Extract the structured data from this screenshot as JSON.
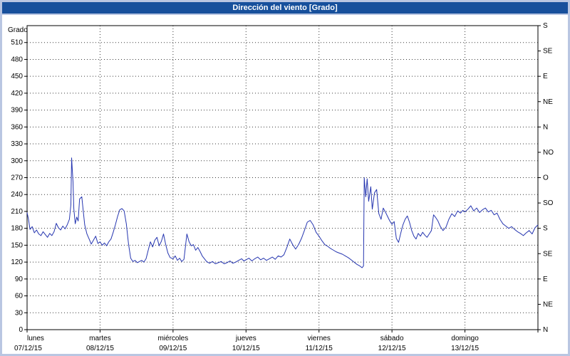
{
  "title": "Dirección del viento [Grado]",
  "colors": {
    "frame": "#b9c6e2",
    "titlebar": "#17509c",
    "title_text": "#ffffff",
    "panel": "#ffffff",
    "grid": "#3a3a3a",
    "axis": "#000000",
    "line": "#2636b0",
    "text": "#000000"
  },
  "chart_data": {
    "type": "line",
    "title": "Dirección del viento [Grado]",
    "ylabel_left": "Grado",
    "ylim": [
      0,
      540
    ],
    "y_left_ticks": [
      0,
      30,
      60,
      90,
      120,
      150,
      180,
      210,
      240,
      270,
      300,
      330,
      360,
      390,
      420,
      450,
      480,
      510
    ],
    "y_right_ticks": [
      {
        "value": 0,
        "label": "N"
      },
      {
        "value": 45,
        "label": "NE"
      },
      {
        "value": 90,
        "label": "E"
      },
      {
        "value": 135,
        "label": "SE"
      },
      {
        "value": 180,
        "label": "S"
      },
      {
        "value": 225,
        "label": "SO"
      },
      {
        "value": 270,
        "label": "O"
      },
      {
        "value": 315,
        "label": "NO"
      },
      {
        "value": 360,
        "label": "N"
      },
      {
        "value": 405,
        "label": "NE"
      },
      {
        "value": 450,
        "label": "E"
      },
      {
        "value": 495,
        "label": "SE"
      },
      {
        "value": 540,
        "label": "S"
      }
    ],
    "xlim_days": [
      0,
      7
    ],
    "x_days": [
      {
        "name": "lunes",
        "date": "07/12/15"
      },
      {
        "name": "martes",
        "date": "08/12/15"
      },
      {
        "name": "miércoles",
        "date": "09/12/15"
      },
      {
        "name": "jueves",
        "date": "10/12/15"
      },
      {
        "name": "viernes",
        "date": "11/12/15"
      },
      {
        "name": "sábado",
        "date": "12/12/15"
      },
      {
        "name": "domingo",
        "date": "13/12/15"
      }
    ],
    "grid": true,
    "legend": false,
    "series": [
      {
        "name": "Dirección del viento",
        "color": "#2636b0",
        "points": [
          [
            0.0,
            208
          ],
          [
            0.02,
            196
          ],
          [
            0.04,
            178
          ],
          [
            0.07,
            183
          ],
          [
            0.1,
            172
          ],
          [
            0.13,
            177
          ],
          [
            0.16,
            170
          ],
          [
            0.19,
            167
          ],
          [
            0.22,
            174
          ],
          [
            0.25,
            169
          ],
          [
            0.28,
            164
          ],
          [
            0.31,
            171
          ],
          [
            0.34,
            167
          ],
          [
            0.37,
            174
          ],
          [
            0.4,
            189
          ],
          [
            0.43,
            181
          ],
          [
            0.46,
            177
          ],
          [
            0.49,
            184
          ],
          [
            0.52,
            179
          ],
          [
            0.55,
            186
          ],
          [
            0.58,
            196
          ],
          [
            0.6,
            222
          ],
          [
            0.61,
            305
          ],
          [
            0.63,
            262
          ],
          [
            0.64,
            215
          ],
          [
            0.66,
            188
          ],
          [
            0.68,
            200
          ],
          [
            0.7,
            193
          ],
          [
            0.72,
            232
          ],
          [
            0.75,
            236
          ],
          [
            0.77,
            210
          ],
          [
            0.79,
            186
          ],
          [
            0.82,
            170
          ],
          [
            0.85,
            161
          ],
          [
            0.88,
            152
          ],
          [
            0.91,
            159
          ],
          [
            0.94,
            166
          ],
          [
            0.97,
            153
          ],
          [
            1.0,
            156
          ],
          [
            1.03,
            150
          ],
          [
            1.06,
            154
          ],
          [
            1.09,
            149
          ],
          [
            1.12,
            156
          ],
          [
            1.15,
            161
          ],
          [
            1.18,
            173
          ],
          [
            1.21,
            186
          ],
          [
            1.24,
            201
          ],
          [
            1.27,
            213
          ],
          [
            1.3,
            215
          ],
          [
            1.33,
            211
          ],
          [
            1.36,
            188
          ],
          [
            1.39,
            152
          ],
          [
            1.42,
            127
          ],
          [
            1.45,
            121
          ],
          [
            1.48,
            123
          ],
          [
            1.51,
            119
          ],
          [
            1.54,
            121
          ],
          [
            1.57,
            123
          ],
          [
            1.6,
            120
          ],
          [
            1.63,
            126
          ],
          [
            1.66,
            141
          ],
          [
            1.69,
            156
          ],
          [
            1.72,
            147
          ],
          [
            1.75,
            159
          ],
          [
            1.78,
            164
          ],
          [
            1.81,
            149
          ],
          [
            1.84,
            157
          ],
          [
            1.87,
            170
          ],
          [
            1.9,
            151
          ],
          [
            1.93,
            136
          ],
          [
            1.96,
            128
          ],
          [
            2.0,
            126
          ],
          [
            2.03,
            131
          ],
          [
            2.06,
            123
          ],
          [
            2.09,
            127
          ],
          [
            2.12,
            121
          ],
          [
            2.15,
            125
          ],
          [
            2.19,
            170
          ],
          [
            2.22,
            156
          ],
          [
            2.25,
            149
          ],
          [
            2.28,
            151
          ],
          [
            2.31,
            141
          ],
          [
            2.34,
            146
          ],
          [
            2.37,
            139
          ],
          [
            2.4,
            131
          ],
          [
            2.43,
            126
          ],
          [
            2.46,
            121
          ],
          [
            2.5,
            118
          ],
          [
            2.54,
            121
          ],
          [
            2.58,
            117
          ],
          [
            2.62,
            119
          ],
          [
            2.66,
            121
          ],
          [
            2.7,
            117
          ],
          [
            2.74,
            119
          ],
          [
            2.78,
            122
          ],
          [
            2.82,
            118
          ],
          [
            2.86,
            120
          ],
          [
            2.9,
            123
          ],
          [
            2.94,
            126
          ],
          [
            2.97,
            122
          ],
          [
            3.0,
            124
          ],
          [
            3.04,
            127
          ],
          [
            3.08,
            122
          ],
          [
            3.12,
            126
          ],
          [
            3.16,
            129
          ],
          [
            3.2,
            124
          ],
          [
            3.24,
            127
          ],
          [
            3.28,
            123
          ],
          [
            3.32,
            126
          ],
          [
            3.36,
            129
          ],
          [
            3.4,
            125
          ],
          [
            3.44,
            131
          ],
          [
            3.48,
            129
          ],
          [
            3.52,
            133
          ],
          [
            3.56,
            146
          ],
          [
            3.6,
            161
          ],
          [
            3.64,
            151
          ],
          [
            3.68,
            143
          ],
          [
            3.72,
            151
          ],
          [
            3.76,
            162
          ],
          [
            3.8,
            176
          ],
          [
            3.84,
            191
          ],
          [
            3.88,
            194
          ],
          [
            3.92,
            186
          ],
          [
            3.96,
            173
          ],
          [
            4.0,
            166
          ],
          [
            4.04,
            158
          ],
          [
            4.08,
            151
          ],
          [
            4.12,
            148
          ],
          [
            4.16,
            144
          ],
          [
            4.2,
            141
          ],
          [
            4.24,
            138
          ],
          [
            4.28,
            136
          ],
          [
            4.32,
            134
          ],
          [
            4.36,
            131
          ],
          [
            4.4,
            128
          ],
          [
            4.44,
            124
          ],
          [
            4.48,
            120
          ],
          [
            4.52,
            116
          ],
          [
            4.56,
            113
          ],
          [
            4.59,
            110
          ],
          [
            4.61,
            113
          ],
          [
            4.62,
            270
          ],
          [
            4.64,
            236
          ],
          [
            4.66,
            268
          ],
          [
            4.68,
            228
          ],
          [
            4.71,
            254
          ],
          [
            4.73,
            214
          ],
          [
            4.76,
            243
          ],
          [
            4.79,
            249
          ],
          [
            4.82,
            206
          ],
          [
            4.85,
            196
          ],
          [
            4.88,
            216
          ],
          [
            4.91,
            209
          ],
          [
            4.94,
            201
          ],
          [
            4.97,
            193
          ],
          [
            5.0,
            187
          ],
          [
            5.03,
            192
          ],
          [
            5.06,
            162
          ],
          [
            5.09,
            155
          ],
          [
            5.12,
            171
          ],
          [
            5.15,
            186
          ],
          [
            5.18,
            196
          ],
          [
            5.21,
            202
          ],
          [
            5.24,
            191
          ],
          [
            5.27,
            176
          ],
          [
            5.3,
            166
          ],
          [
            5.33,
            161
          ],
          [
            5.36,
            171
          ],
          [
            5.39,
            166
          ],
          [
            5.42,
            173
          ],
          [
            5.45,
            168
          ],
          [
            5.48,
            164
          ],
          [
            5.51,
            170
          ],
          [
            5.54,
            176
          ],
          [
            5.57,
            204
          ],
          [
            5.6,
            199
          ],
          [
            5.63,
            193
          ],
          [
            5.66,
            184
          ],
          [
            5.7,
            176
          ],
          [
            5.74,
            182
          ],
          [
            5.78,
            196
          ],
          [
            5.82,
            206
          ],
          [
            5.86,
            201
          ],
          [
            5.9,
            211
          ],
          [
            5.94,
            207
          ],
          [
            5.97,
            212
          ],
          [
            6.0,
            209
          ],
          [
            6.04,
            214
          ],
          [
            6.08,
            220
          ],
          [
            6.12,
            211
          ],
          [
            6.16,
            216
          ],
          [
            6.2,
            208
          ],
          [
            6.24,
            213
          ],
          [
            6.28,
            216
          ],
          [
            6.32,
            209
          ],
          [
            6.36,
            212
          ],
          [
            6.4,
            204
          ],
          [
            6.44,
            207
          ],
          [
            6.48,
            196
          ],
          [
            6.52,
            188
          ],
          [
            6.56,
            184
          ],
          [
            6.6,
            180
          ],
          [
            6.64,
            183
          ],
          [
            6.68,
            178
          ],
          [
            6.72,
            174
          ],
          [
            6.76,
            171
          ],
          [
            6.8,
            167
          ],
          [
            6.84,
            172
          ],
          [
            6.88,
            176
          ],
          [
            6.92,
            170
          ],
          [
            6.96,
            181
          ],
          [
            7.0,
            186
          ]
        ]
      }
    ]
  }
}
